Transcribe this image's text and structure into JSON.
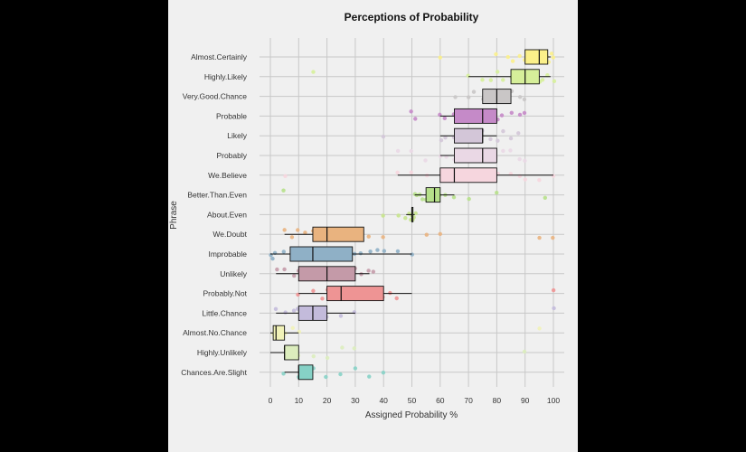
{
  "chart_data": {
    "type": "boxplot",
    "title": "Perceptions of Probability",
    "xlabel": "Assigned Probability %",
    "ylabel": "Phrase",
    "xlim": [
      -3,
      103
    ],
    "xticks": [
      0,
      10,
      20,
      30,
      40,
      50,
      60,
      70,
      80,
      90,
      100
    ],
    "grid": true,
    "categories": [
      {
        "name": "Almost.Certainly",
        "color": "#fbf08a",
        "box": [
          90,
          95,
          98
        ],
        "whiskers": [
          90,
          99
        ],
        "points": [
          60,
          80,
          84,
          86,
          88,
          90,
          92,
          93,
          95,
          96,
          97,
          98,
          98,
          99,
          100
        ]
      },
      {
        "name": "Highly.Likely",
        "color": "#d6ef9a",
        "box": [
          85,
          90,
          95
        ],
        "whiskers": [
          70,
          99
        ],
        "points": [
          15,
          70,
          75,
          78,
          80,
          82,
          85,
          88,
          90,
          92,
          95,
          96,
          98,
          100
        ]
      },
      {
        "name": "Very.Good.Chance",
        "color": "#c9c6c6",
        "box": [
          75,
          80,
          85
        ],
        "whiskers": [
          75,
          85
        ],
        "points": [
          65,
          70,
          72,
          75,
          77,
          80,
          82,
          85,
          88,
          90
        ]
      },
      {
        "name": "Probable",
        "color": "#c58ac8",
        "box": [
          65,
          75,
          80
        ],
        "whiskers": [
          60,
          80
        ],
        "points": [
          50,
          51,
          60,
          62,
          65,
          67,
          70,
          72,
          75,
          78,
          80,
          82,
          85,
          88,
          90
        ]
      },
      {
        "name": "Likely",
        "color": "#d3c6d8",
        "box": [
          65,
          75,
          75
        ],
        "whiskers": [
          60,
          80
        ],
        "points": [
          40,
          60,
          62,
          65,
          70,
          72,
          75,
          78,
          80,
          82,
          85,
          88
        ]
      },
      {
        "name": "Probably",
        "color": "#ead8e5",
        "box": [
          65,
          75,
          80
        ],
        "whiskers": [
          60,
          80
        ],
        "points": [
          45,
          50,
          55,
          60,
          62,
          65,
          70,
          72,
          75,
          78,
          80,
          82,
          85,
          88,
          90
        ]
      },
      {
        "name": "We.Believe",
        "color": "#f6d6de",
        "box": [
          60,
          65,
          80
        ],
        "whiskers": [
          45,
          100
        ],
        "points": [
          5,
          45,
          50,
          55,
          60,
          65,
          70,
          75,
          80,
          85,
          88,
          90,
          95,
          100
        ]
      },
      {
        "name": "Better.Than.Even",
        "color": "#b6e08a",
        "box": [
          55,
          58,
          60
        ],
        "whiskers": [
          51,
          65
        ],
        "points": [
          5,
          51,
          52,
          53,
          54,
          55,
          56,
          57,
          58,
          60,
          62,
          65,
          70,
          80,
          97
        ]
      },
      {
        "name": "About.Even",
        "color": "#c6e48c",
        "box": [
          50,
          50,
          50
        ],
        "whiskers": [
          48,
          51
        ],
        "points": [
          40,
          45,
          48,
          49,
          50,
          50,
          50,
          51,
          51
        ]
      },
      {
        "name": "We.Doubt",
        "color": "#e9b37f",
        "box": [
          15,
          20,
          33
        ],
        "whiskers": [
          5,
          33
        ],
        "points": [
          5,
          8,
          10,
          12,
          15,
          18,
          20,
          22,
          25,
          28,
          30,
          32,
          35,
          40,
          55,
          60,
          95,
          100
        ]
      },
      {
        "name": "Improbable",
        "color": "#8fb0c6",
        "box": [
          7,
          15,
          29
        ],
        "whiskers": [
          0,
          50
        ],
        "points": [
          0,
          1,
          2,
          5,
          8,
          10,
          12,
          15,
          18,
          20,
          22,
          25,
          28,
          30,
          32,
          35,
          38,
          40,
          45,
          50
        ]
      },
      {
        "name": "Unlikely",
        "color": "#c49aa8",
        "box": [
          10,
          20,
          30
        ],
        "whiskers": [
          2,
          35
        ],
        "points": [
          2,
          5,
          8,
          10,
          12,
          15,
          18,
          20,
          22,
          25,
          28,
          30,
          32,
          35,
          36
        ]
      },
      {
        "name": "Probably.Not",
        "color": "#ee9494",
        "box": [
          20,
          25,
          40
        ],
        "whiskers": [
          10,
          50
        ],
        "points": [
          10,
          15,
          18,
          20,
          22,
          25,
          28,
          30,
          32,
          35,
          38,
          40,
          42,
          45,
          100
        ]
      },
      {
        "name": "Little.Chance",
        "color": "#c3bbdb",
        "box": [
          10,
          15,
          20
        ],
        "whiskers": [
          2,
          30
        ],
        "points": [
          2,
          5,
          8,
          10,
          12,
          15,
          18,
          20,
          25,
          30,
          100
        ]
      },
      {
        "name": "Almost.No.Chance",
        "color": "#f1f2b8",
        "box": [
          1,
          2,
          5
        ],
        "whiskers": [
          0,
          10
        ],
        "points": [
          1,
          2,
          5,
          8,
          10,
          95
        ]
      },
      {
        "name": "Highly.Unlikely",
        "color": "#dcedbd",
        "box": [
          5,
          5,
          10
        ],
        "whiskers": [
          0,
          10
        ],
        "points": [
          5,
          10,
          15,
          20,
          25,
          30,
          90
        ]
      },
      {
        "name": "Chances.Are.Slight",
        "color": "#86d1c6",
        "box": [
          10,
          10,
          15
        ],
        "whiskers": [
          5,
          15
        ],
        "points": [
          5,
          10,
          15,
          20,
          25,
          30,
          35,
          40
        ]
      }
    ]
  }
}
